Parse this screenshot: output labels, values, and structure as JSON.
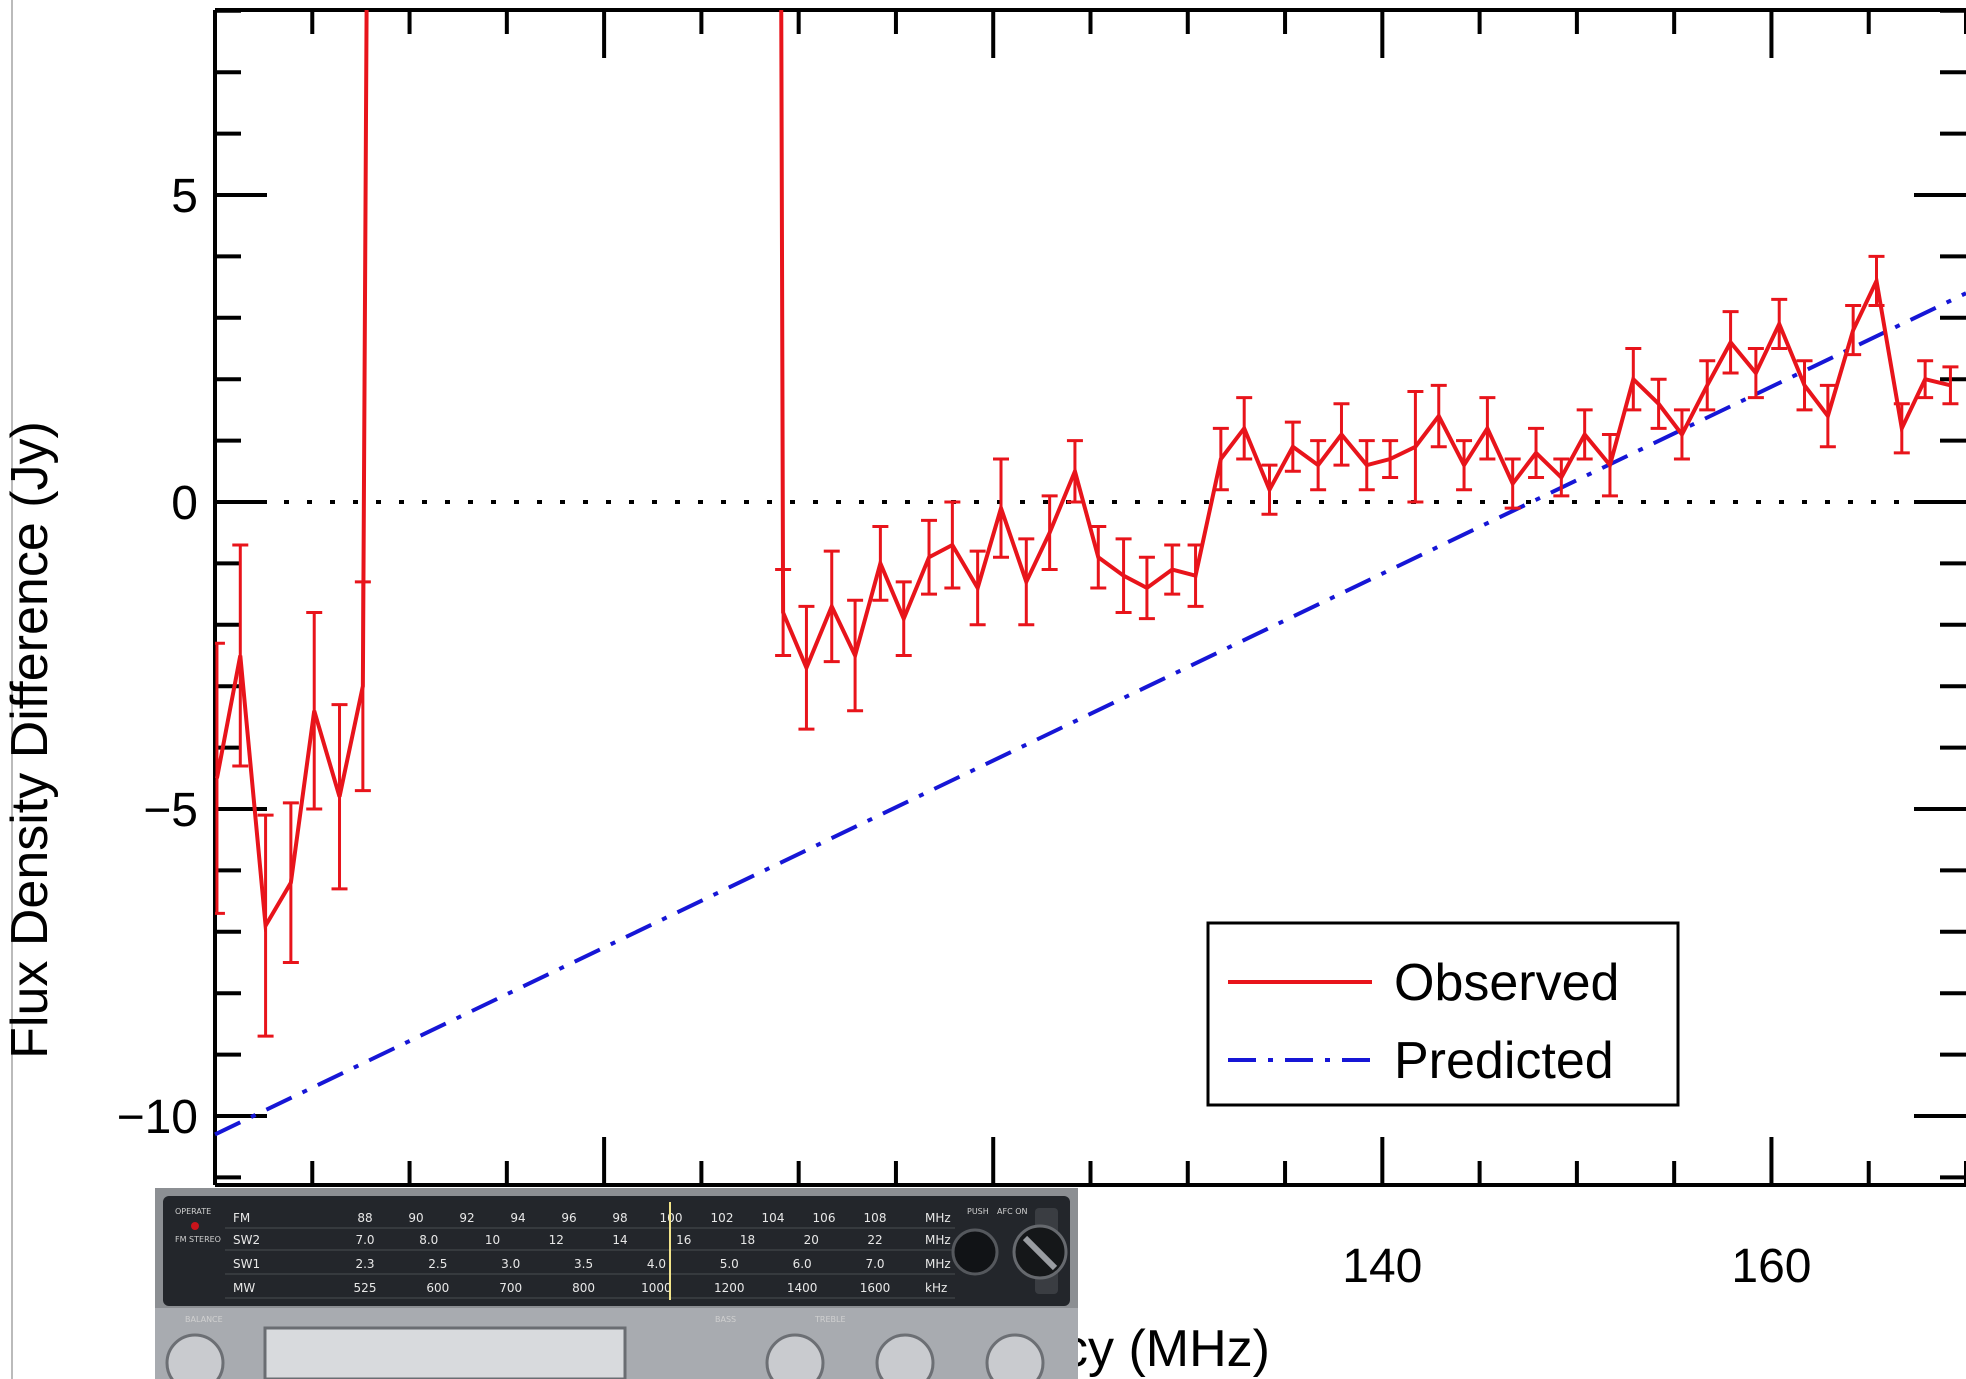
{
  "chart_data": {
    "type": "line",
    "title": "",
    "xlabel": "Frequency (MHz)",
    "xlabel_visible": "cy (MHz)",
    "ylabel": "Flux Density Difference (Jy)",
    "xlim": [
      80,
      170
    ],
    "ylim": [
      -11,
      8
    ],
    "x_ticks": [
      140,
      160
    ],
    "y_ticks": [
      -10,
      -5,
      0,
      5
    ],
    "x_tick_labels": [
      "140",
      "160"
    ],
    "y_tick_labels": [
      "−10",
      "−5",
      "0",
      "5"
    ],
    "grid": false,
    "zero_line": true,
    "legend_position": "lower-right",
    "series": [
      {
        "name": "Observed",
        "color": "#e8141b",
        "style": "solid",
        "segments": [
          [
            {
              "x": 80.1,
              "y": -4.5,
              "err": 2.2
            },
            {
              "x": 81.3,
              "y": -2.5,
              "err": 1.8
            },
            {
              "x": 82.6,
              "y": -6.9,
              "err": 1.8
            },
            {
              "x": 83.9,
              "y": -6.2,
              "err": 1.3
            },
            {
              "x": 85.1,
              "y": -3.4,
              "err": 1.6
            },
            {
              "x": 86.4,
              "y": -4.8,
              "err": 1.5
            },
            {
              "x": 87.6,
              "y": -3.0,
              "err": 1.7
            },
            {
              "x": 87.8,
              "y": 8.5,
              "err": 0
            }
          ],
          [
            {
              "x": 109.1,
              "y": 8.5,
              "err": 0
            },
            {
              "x": 109.2,
              "y": -1.8,
              "err": 0.7
            },
            {
              "x": 110.4,
              "y": -2.7,
              "err": 1.0
            },
            {
              "x": 111.7,
              "y": -1.7,
              "err": 0.9
            },
            {
              "x": 112.9,
              "y": -2.5,
              "err": 0.9
            },
            {
              "x": 114.2,
              "y": -1.0,
              "err": 0.6
            },
            {
              "x": 115.4,
              "y": -1.9,
              "err": 0.6
            },
            {
              "x": 116.7,
              "y": -0.9,
              "err": 0.6
            },
            {
              "x": 117.9,
              "y": -0.7,
              "err": 0.7
            },
            {
              "x": 119.2,
              "y": -1.4,
              "err": 0.6
            },
            {
              "x": 120.4,
              "y": -0.1,
              "err": 0.8
            },
            {
              "x": 121.7,
              "y": -1.3,
              "err": 0.7
            },
            {
              "x": 122.9,
              "y": -0.5,
              "err": 0.6
            },
            {
              "x": 124.2,
              "y": 0.5,
              "err": 0.5
            },
            {
              "x": 125.4,
              "y": -0.9,
              "err": 0.5
            },
            {
              "x": 126.7,
              "y": -1.2,
              "err": 0.6
            },
            {
              "x": 127.9,
              "y": -1.4,
              "err": 0.5
            },
            {
              "x": 129.2,
              "y": -1.1,
              "err": 0.4
            },
            {
              "x": 130.4,
              "y": -1.2,
              "err": 0.5
            },
            {
              "x": 131.7,
              "y": 0.7,
              "err": 0.5
            },
            {
              "x": 132.9,
              "y": 1.2,
              "err": 0.5
            },
            {
              "x": 134.2,
              "y": 0.2,
              "err": 0.4
            },
            {
              "x": 135.4,
              "y": 0.9,
              "err": 0.4
            },
            {
              "x": 136.7,
              "y": 0.6,
              "err": 0.4
            },
            {
              "x": 137.9,
              "y": 1.1,
              "err": 0.5
            },
            {
              "x": 139.2,
              "y": 0.6,
              "err": 0.4
            },
            {
              "x": 140.4,
              "y": 0.7,
              "err": 0.3
            },
            {
              "x": 141.7,
              "y": 0.9,
              "err": 0.9
            },
            {
              "x": 142.9,
              "y": 1.4,
              "err": 0.5
            },
            {
              "x": 144.2,
              "y": 0.6,
              "err": 0.4
            },
            {
              "x": 145.4,
              "y": 1.2,
              "err": 0.5
            },
            {
              "x": 146.7,
              "y": 0.3,
              "err": 0.4
            },
            {
              "x": 147.9,
              "y": 0.8,
              "err": 0.4
            },
            {
              "x": 149.2,
              "y": 0.4,
              "err": 0.3
            },
            {
              "x": 150.4,
              "y": 1.1,
              "err": 0.4
            },
            {
              "x": 151.7,
              "y": 0.6,
              "err": 0.5
            },
            {
              "x": 152.9,
              "y": 2.0,
              "err": 0.5
            },
            {
              "x": 154.2,
              "y": 1.6,
              "err": 0.4
            },
            {
              "x": 155.4,
              "y": 1.1,
              "err": 0.4
            },
            {
              "x": 156.7,
              "y": 1.9,
              "err": 0.4
            },
            {
              "x": 157.9,
              "y": 2.6,
              "err": 0.5
            },
            {
              "x": 159.2,
              "y": 2.1,
              "err": 0.4
            },
            {
              "x": 160.4,
              "y": 2.9,
              "err": 0.4
            },
            {
              "x": 161.7,
              "y": 1.9,
              "err": 0.4
            },
            {
              "x": 162.9,
              "y": 1.4,
              "err": 0.5
            },
            {
              "x": 164.2,
              "y": 2.8,
              "err": 0.4
            },
            {
              "x": 165.4,
              "y": 3.6,
              "err": 0.4
            },
            {
              "x": 166.7,
              "y": 1.2,
              "err": 0.4
            },
            {
              "x": 167.9,
              "y": 2.0,
              "err": 0.3
            },
            {
              "x": 169.2,
              "y": 1.9,
              "err": 0.3
            }
          ]
        ]
      },
      {
        "name": "Predicted",
        "color": "#1616d6",
        "style": "dash-dot",
        "points": [
          {
            "x": 80,
            "y": -10.3
          },
          {
            "x": 170,
            "y": 3.4
          }
        ]
      }
    ]
  },
  "radio": {
    "band_labels": [
      "FM",
      "SW2",
      "SW1",
      "MW"
    ],
    "fm_scale": [
      "88",
      "90",
      "92",
      "94",
      "96",
      "98",
      "100",
      "102",
      "104",
      "106",
      "108"
    ],
    "sw2_scale": [
      "7.0",
      "8.0",
      "10",
      "12",
      "14",
      "16",
      "18",
      "20",
      "22"
    ],
    "sw1_scale": [
      "2.3",
      "2.5",
      "3.0",
      "3.5",
      "4.0",
      "5.0",
      "6.0",
      "7.0"
    ],
    "mw_scale": [
      "525",
      "600",
      "700",
      "800",
      "1000",
      "1200",
      "1400",
      "1600"
    ],
    "units": [
      "MHz",
      "MHz",
      "MHz",
      "kHz"
    ],
    "indicators": [
      "OPERATE",
      "FM STEREO",
      "PUSH",
      "AFC ON"
    ],
    "knob_labels": [
      "BALANCE",
      "BASS",
      "TREBLE"
    ]
  }
}
